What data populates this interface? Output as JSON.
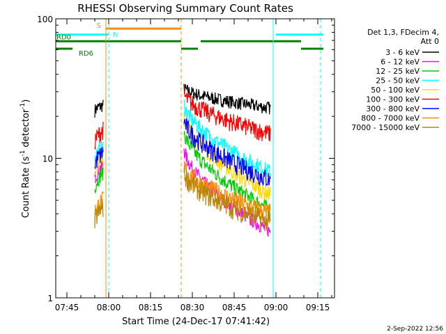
{
  "chart_data": {
    "type": "line",
    "title": "RHESSI Observing Summary Count Rates",
    "xlabel": "Start Time (24-Dec-17 07:41:42)",
    "ylabel": "Count Rate (s",
    "ylabel_sup": "-1",
    "ylabel_tail": " detector",
    "ylabel_tail_sup": "-1",
    "ylabel_end": ")",
    "yscale": "log",
    "xlim": [
      "07:41",
      "09:21"
    ],
    "ylim": [
      1,
      100
    ],
    "x_ticks": [
      "07:45",
      "08:00",
      "08:15",
      "08:30",
      "08:45",
      "09:00",
      "09:15"
    ],
    "y_ticks": [
      "1",
      "10",
      "100"
    ],
    "legend_header": [
      "Det 1,3, FDecim 4,",
      "Att 0"
    ],
    "series": [
      {
        "name": "3 - 6 keV",
        "color": "#000000",
        "segments": [
          {
            "x": [
              "07:55",
              "07:58"
            ],
            "y": [
              22,
              24
            ]
          },
          {
            "x": [
              "08:27",
              "08:58"
            ],
            "y": [
              32,
              23
            ]
          }
        ]
      },
      {
        "name": "6 - 12 keV",
        "color": "#ff00ff",
        "segments": [
          {
            "x": [
              "07:55",
              "07:58"
            ],
            "y": [
              7,
              9
            ]
          },
          {
            "x": [
              "08:27",
              "08:58"
            ],
            "y": [
              12,
              3
            ]
          }
        ]
      },
      {
        "name": "12 - 25 keV",
        "color": "#00cc00",
        "segments": [
          {
            "x": [
              "07:55",
              "07:58"
            ],
            "y": [
              6,
              8
            ]
          },
          {
            "x": [
              "08:27",
              "08:58"
            ],
            "y": [
              16,
              4.3
            ]
          }
        ]
      },
      {
        "name": "25 - 50 keV",
        "color": "#00ffff",
        "segments": [
          {
            "x": [
              "07:55",
              "07:58"
            ],
            "y": [
              10,
              12
            ]
          },
          {
            "x": [
              "08:27",
              "08:58"
            ],
            "y": [
              25,
              8
            ]
          }
        ]
      },
      {
        "name": "50 - 100 keV",
        "color": "#ffd700",
        "segments": [
          {
            "x": [
              "07:55",
              "07:58"
            ],
            "y": [
              8,
              10
            ]
          },
          {
            "x": [
              "08:27",
              "08:58"
            ],
            "y": [
              21,
              5.5
            ]
          }
        ]
      },
      {
        "name": "100 - 300 keV",
        "color": "#ff0000",
        "segments": [
          {
            "x": [
              "07:55",
              "07:58"
            ],
            "y": [
              13,
              16
            ]
          },
          {
            "x": [
              "08:27",
              "08:58"
            ],
            "y": [
              29,
              15
            ]
          }
        ]
      },
      {
        "name": "300 - 800 keV",
        "color": "#0000ff",
        "segments": [
          {
            "x": [
              "07:55",
              "07:58"
            ],
            "y": [
              9,
              11
            ]
          },
          {
            "x": [
              "08:27",
              "08:58"
            ],
            "y": [
              19,
              7
            ]
          }
        ]
      },
      {
        "name": "800 - 7000 keV",
        "color": "#ff8c00",
        "segments": [
          {
            "x": [
              "07:55",
              "07:58"
            ],
            "y": [
              4,
              5
            ]
          },
          {
            "x": [
              "08:27",
              "08:58"
            ],
            "y": [
              9,
              4
            ]
          }
        ]
      },
      {
        "name": "7000 - 15000 keV",
        "color": "#b8860b",
        "segments": [
          {
            "x": [
              "07:55",
              "07:58"
            ],
            "y": [
              3.5,
              4.5
            ]
          },
          {
            "x": [
              "08:27",
              "08:58"
            ],
            "y": [
              8,
              3.5
            ]
          }
        ]
      }
    ],
    "flags": [
      {
        "label": "S",
        "color": "#ff8c00",
        "level": 85,
        "segments": [
          [
            "07:59",
            "08:26"
          ]
        ]
      },
      {
        "label": "N",
        "color": "#00ffff",
        "level": 77,
        "segments": [
          [
            "07:41",
            "08:00"
          ],
          [
            "09:00",
            "09:17"
          ]
        ]
      },
      {
        "label": "RD0",
        "color": "#008000",
        "level": 69,
        "segments": [
          [
            "07:41",
            "08:26"
          ],
          [
            "08:33",
            "09:09"
          ]
        ]
      },
      {
        "label": "RD6",
        "color": "#008000",
        "level": 61,
        "segments": [
          [
            "07:41",
            "07:47"
          ],
          [
            "08:26",
            "08:32"
          ],
          [
            "09:09",
            "09:17"
          ]
        ]
      }
    ],
    "vertical_lines": [
      {
        "x": "07:41",
        "color": "#00ffff",
        "style": "solid"
      },
      {
        "x": "07:59",
        "color": "#ff8c00",
        "style": "solid"
      },
      {
        "x": "08:00",
        "color": "#00ffff",
        "style": "dashed"
      },
      {
        "x": "08:26",
        "color": "#ff8c00",
        "style": "dashed"
      },
      {
        "x": "08:59",
        "color": "#00ffff",
        "style": "solid"
      },
      {
        "x": "09:16",
        "color": "#00ffff",
        "style": "dashed"
      }
    ],
    "footer_date": "2-Sep-2022 12:56"
  }
}
